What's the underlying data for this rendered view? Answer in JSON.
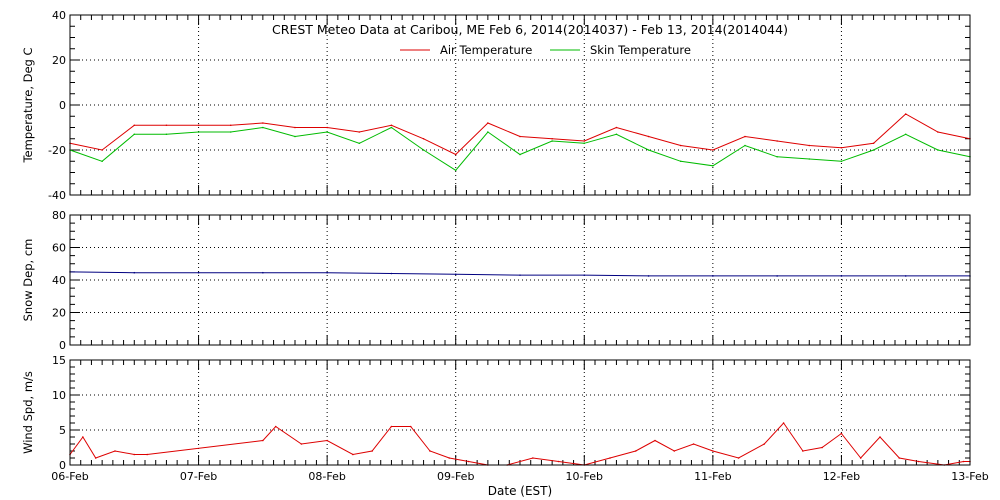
{
  "chart_data": [
    {
      "type": "line",
      "title": "CREST Meteo Data at Caribou, ME   Feb  6, 2014(2014037) - Feb 13, 2014(2014044)",
      "ylabel": "Temperature, Deg C",
      "ylim": [
        -40,
        40
      ],
      "yticks": [
        "-40",
        "-20",
        "0",
        "20",
        "40"
      ],
      "grid": true,
      "legend": "top-center",
      "x": [
        0,
        0.25,
        0.5,
        0.75,
        1,
        1.25,
        1.5,
        1.75,
        2,
        2.25,
        2.5,
        2.75,
        3,
        3.25,
        3.5,
        3.75,
        4,
        4.25,
        4.5,
        4.75,
        5,
        5.25,
        5.5,
        5.75,
        6,
        6.25,
        6.5,
        6.75,
        7
      ],
      "series": [
        {
          "name": "Air Temperature",
          "color": "#dd0000",
          "values": [
            -17,
            -20,
            -9,
            -9,
            -9,
            -9,
            -8,
            -10,
            -10,
            -12,
            -9,
            -15,
            -22,
            -8,
            -14,
            -15,
            -16,
            -10,
            -14,
            -18,
            -20,
            -14,
            -16,
            -18,
            -19,
            -17,
            -4,
            -12,
            -15
          ]
        },
        {
          "name": "Skin Temperature",
          "color": "#00bb00",
          "values": [
            -20,
            -25,
            -13,
            -13,
            -12,
            -12,
            -10,
            -14,
            -12,
            -17,
            -10,
            -20,
            -29,
            -12,
            -22,
            -16,
            -17,
            -13,
            -20,
            -25,
            -27,
            -18,
            -23,
            -24,
            -25,
            -20,
            -13,
            -20,
            -23
          ]
        }
      ]
    },
    {
      "type": "line",
      "ylabel": "Snow Dep, cm",
      "ylim": [
        0,
        80
      ],
      "yticks": [
        "0",
        "20",
        "40",
        "60",
        "80"
      ],
      "grid": true,
      "x": [
        0,
        0.5,
        1,
        1.5,
        2,
        2.5,
        3,
        3.5,
        4,
        4.5,
        5,
        5.5,
        6,
        6.5,
        7
      ],
      "series": [
        {
          "name": "",
          "color": "#000080",
          "values": [
            45,
            44.5,
            44.5,
            44.5,
            44.5,
            44,
            43.5,
            43,
            43,
            42.5,
            42.5,
            42.5,
            42.5,
            42.5,
            42.5
          ]
        }
      ]
    },
    {
      "type": "line",
      "ylabel": "Wind Spd, m/s",
      "xlabel": "Date (EST)",
      "ylim": [
        0,
        15
      ],
      "yticks": [
        "0",
        "5",
        "10",
        "15"
      ],
      "grid": true,
      "xticks": [
        "06-Feb",
        "07-Feb",
        "08-Feb",
        "09-Feb",
        "10-Feb",
        "11-Feb",
        "12-Feb",
        "13-Feb"
      ],
      "x": [
        0,
        0.1,
        0.2,
        0.35,
        0.5,
        0.6,
        1.5,
        1.6,
        1.8,
        2.0,
        2.2,
        2.35,
        2.5,
        2.65,
        2.8,
        2.95,
        3.1,
        3.25,
        3.4,
        3.6,
        3.8,
        4.0,
        4.2,
        4.4,
        4.55,
        4.7,
        4.85,
        5.0,
        5.2,
        5.4,
        5.55,
        5.7,
        5.85,
        6.0,
        6.15,
        6.3,
        6.45,
        6.6,
        6.8,
        6.95,
        7.0
      ],
      "series": [
        {
          "name": "",
          "color": "#dd0000",
          "values": [
            1.5,
            4,
            1,
            2,
            1.5,
            1.5,
            3.5,
            5.5,
            3,
            3.5,
            1.5,
            2,
            5.5,
            5.5,
            2,
            1,
            0.5,
            0,
            0,
            1,
            0.5,
            0,
            1,
            2,
            3.5,
            2,
            3,
            2,
            1,
            3,
            6,
            2,
            2.5,
            4.5,
            1,
            4,
            1,
            0.5,
            0,
            0.5,
            0.5
          ]
        }
      ]
    }
  ]
}
